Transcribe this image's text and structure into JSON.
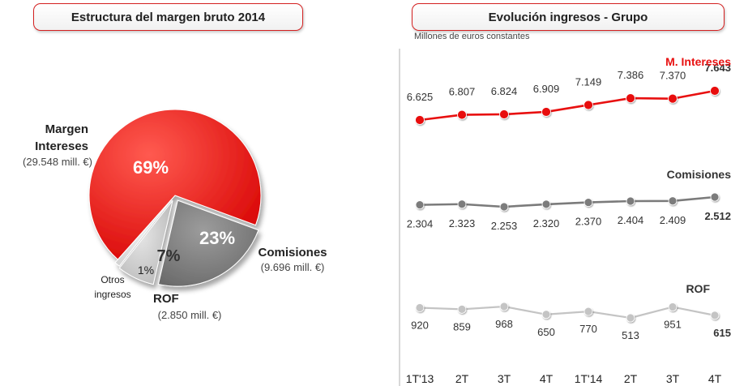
{
  "colors": {
    "accent": "#e81010",
    "comisiones": "#7b7b7b",
    "rof": "#c4c4c4",
    "otros": "#dddddd"
  },
  "left_panel": {
    "title": "Estructura del margen bruto 2014"
  },
  "right_panel": {
    "title": "Evolución ingresos - Grupo",
    "subtitle": "Millones de euros constantes"
  },
  "chart_data": [
    {
      "type": "pie",
      "title": "Estructura del margen bruto 2014",
      "slices": [
        {
          "name": "Margen Intereses",
          "name_lines": [
            "Margen",
            "Intereses"
          ],
          "percent": 69,
          "label": "69%",
          "amount": "(29.548 mill. €)"
        },
        {
          "name": "Comisiones",
          "name_lines": [
            "Comisiones"
          ],
          "percent": 23,
          "label": "23%",
          "amount": "(9.696 mill. €)"
        },
        {
          "name": "ROF",
          "name_lines": [
            "ROF"
          ],
          "percent": 7,
          "label": "7%",
          "amount": "(2.850 mill. €)"
        },
        {
          "name": "Otros ingresos",
          "name_lines": [
            "Otros",
            "ingresos"
          ],
          "percent": 1,
          "label": "1%",
          "amount": ""
        }
      ]
    },
    {
      "type": "line",
      "title": "Evolución ingresos - Grupo",
      "subtitle": "Millones de euros constantes",
      "categories": [
        "1T'13",
        "2T",
        "3T",
        "4T",
        "1T'14",
        "2T",
        "3T",
        "4T"
      ],
      "series": [
        {
          "name": "M. Intereses",
          "values": [
            6625,
            6807,
            6824,
            6909,
            7149,
            7386,
            7370,
            7643
          ],
          "labels": [
            "6.625",
            "6.807",
            "6.824",
            "6.909",
            "7.149",
            "7.386",
            "7.370",
            "7.643"
          ],
          "color": "#e81010"
        },
        {
          "name": "Comisiones",
          "values": [
            2304,
            2323,
            2253,
            2320,
            2370,
            2404,
            2409,
            2512
          ],
          "labels": [
            "2.304",
            "2.323",
            "2.253",
            "2.320",
            "2.370",
            "2.404",
            "2.409",
            "2.512"
          ],
          "color": "#7b7b7b"
        },
        {
          "name": "ROF",
          "values": [
            920,
            859,
            968,
            650,
            770,
            513,
            951,
            615
          ],
          "labels": [
            "920",
            "859",
            "968",
            "650",
            "770",
            "513",
            "951",
            "615"
          ],
          "color": "#c4c4c4"
        }
      ]
    }
  ]
}
